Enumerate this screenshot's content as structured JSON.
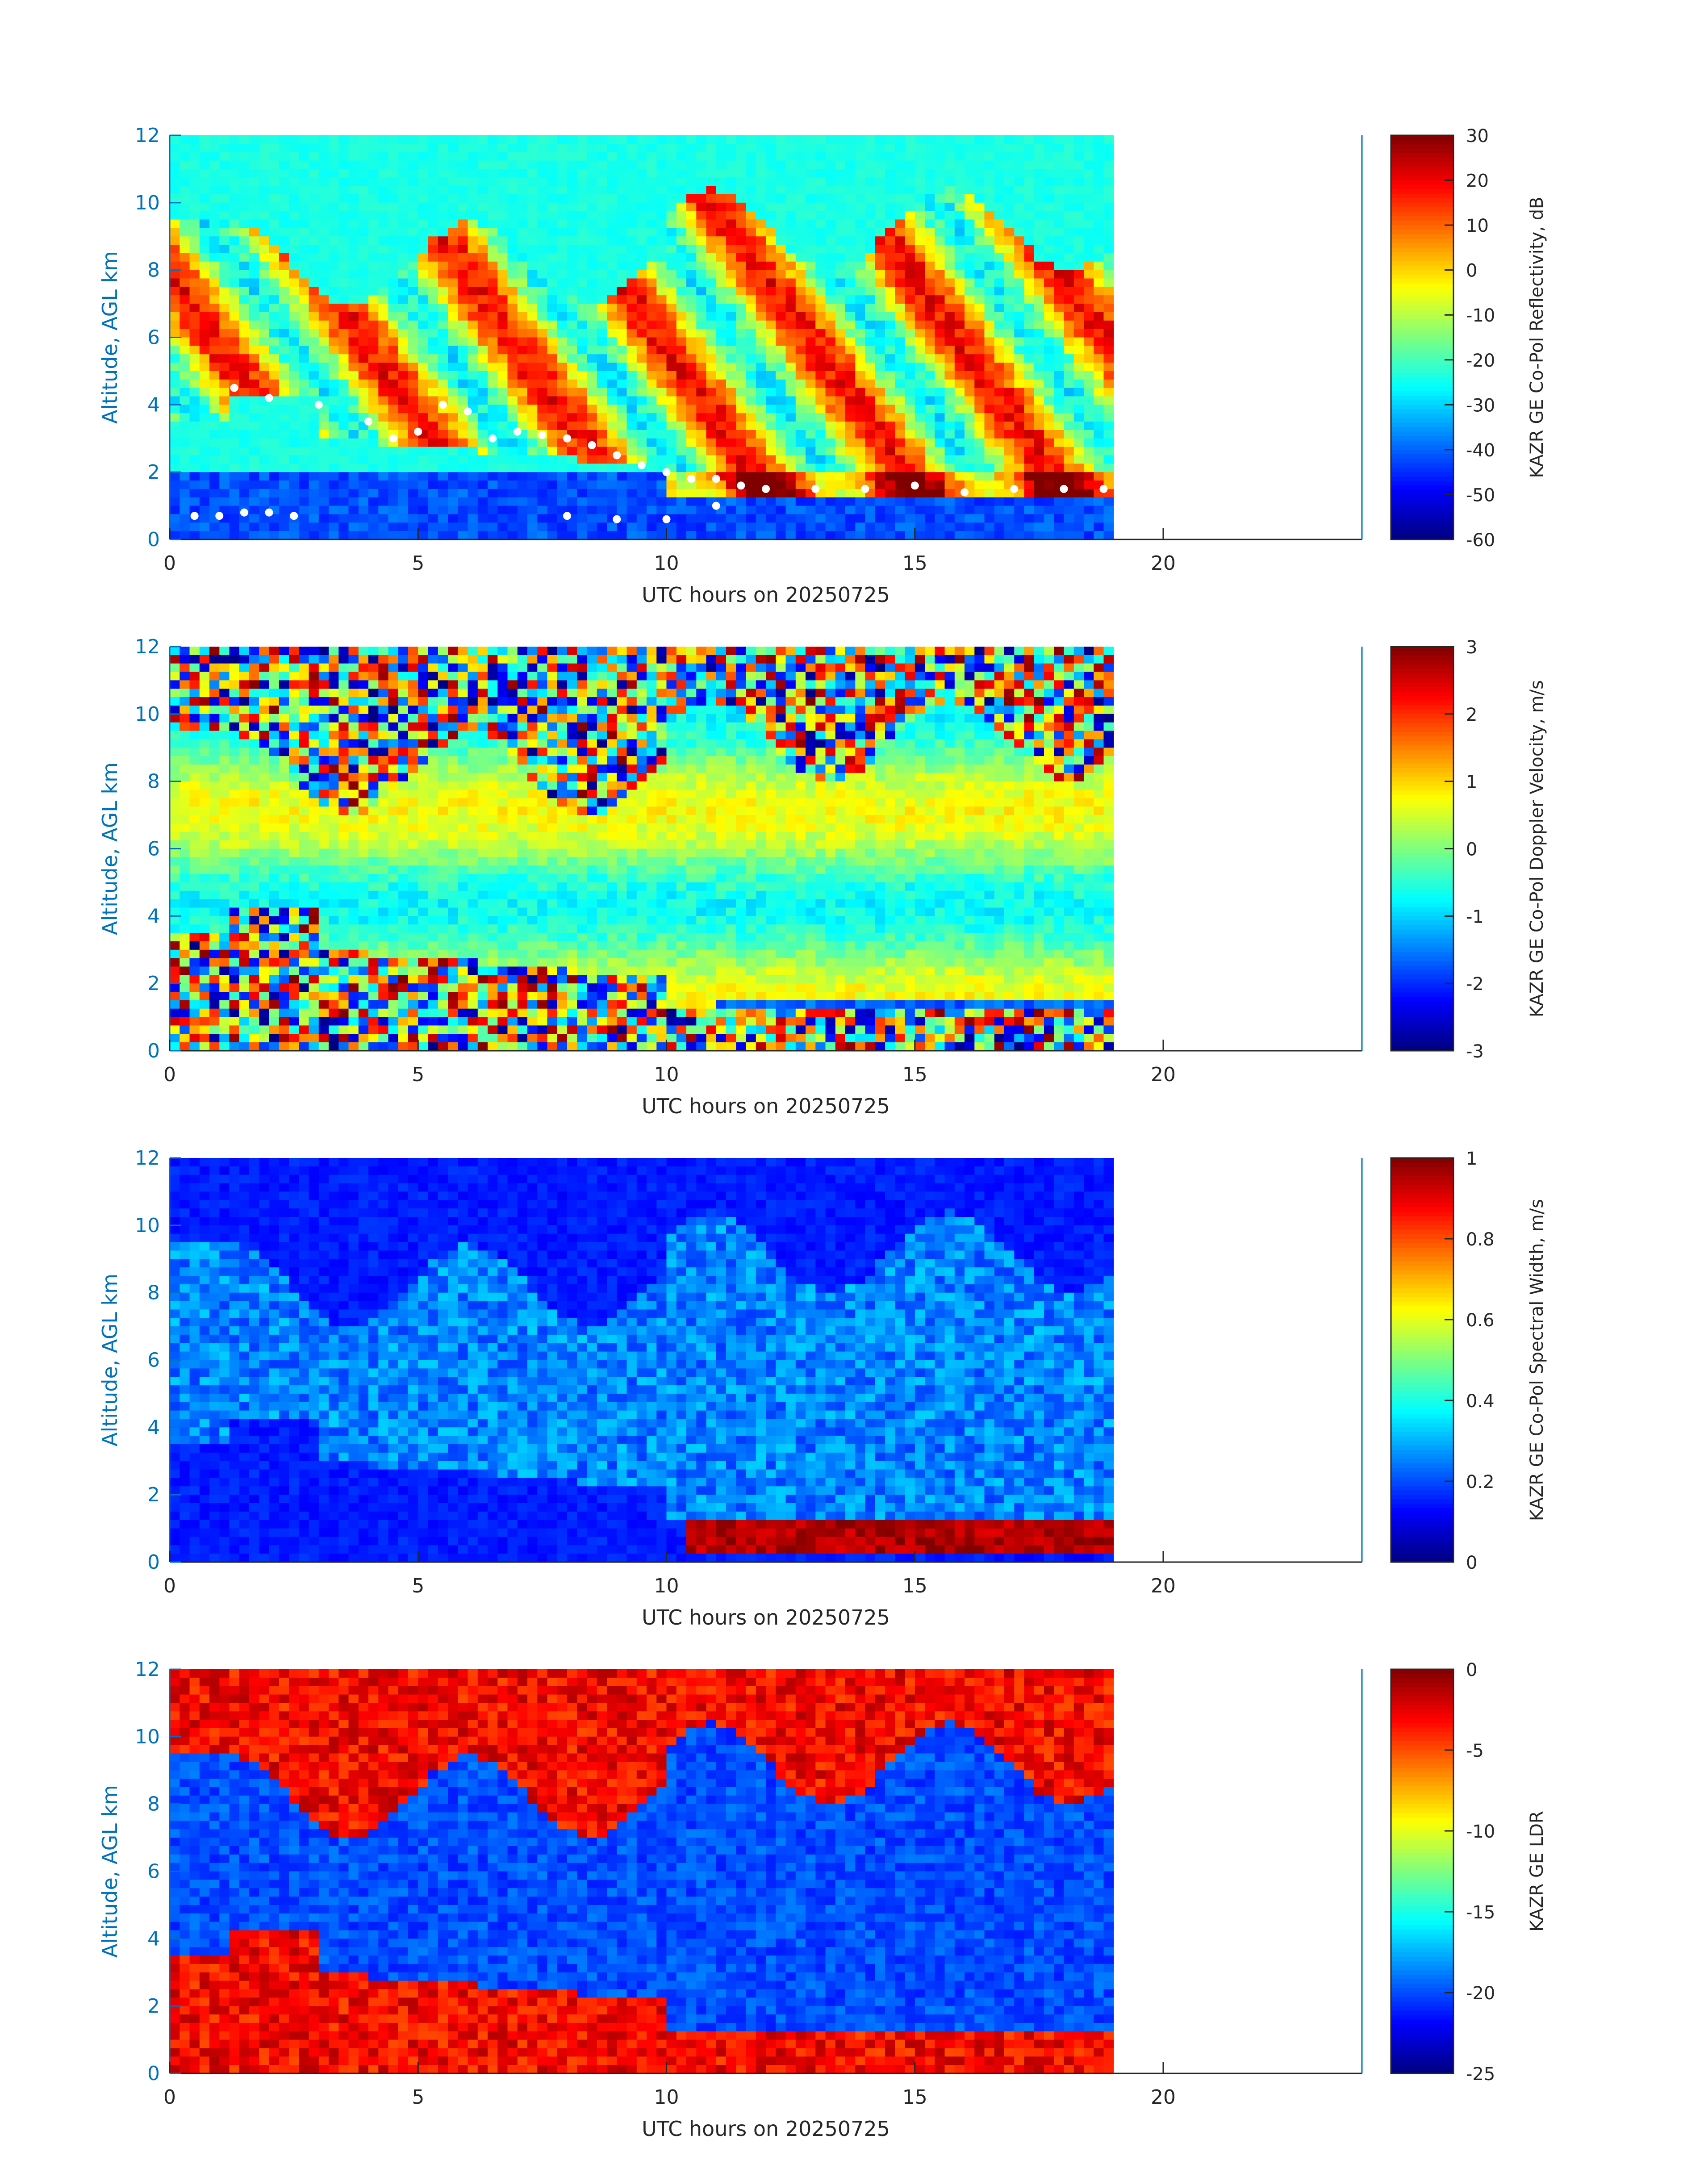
{
  "figure": {
    "colors": {
      "axis": "#0072BD",
      "text": "#262626",
      "tick_label": "#262626",
      "ylabel": "#0072BD",
      "marker": "#ffffff",
      "background": "#ffffff"
    },
    "colormap": "jet"
  },
  "chart_data": [
    {
      "type": "heatmap",
      "title": "",
      "xlabel": "UTC hours on 20250725",
      "ylabel": "Altitude, AGL km",
      "xlim": [
        0,
        24
      ],
      "ylim": [
        0,
        12
      ],
      "x_ticks": [
        0,
        5,
        10,
        15,
        20
      ],
      "y_ticks": [
        0,
        2,
        4,
        6,
        8,
        10,
        12
      ],
      "x_data_extent": [
        0,
        19
      ],
      "colorbar": {
        "label": "KAZR GE Co-Pol Reflectivity, dB",
        "range": [
          -60,
          30
        ],
        "ticks": [
          -60,
          -50,
          -40,
          -30,
          -20,
          -10,
          0,
          10,
          20,
          30
        ]
      },
      "overlay_markers": {
        "description": "white dots (cloud-base / lidar markers)",
        "points": [
          [
            0.5,
            0.7
          ],
          [
            1.0,
            0.7
          ],
          [
            1.5,
            0.8
          ],
          [
            2.0,
            0.8
          ],
          [
            2.5,
            0.7
          ],
          [
            1.3,
            4.5
          ],
          [
            2.0,
            4.2
          ],
          [
            3.0,
            4.0
          ],
          [
            4.0,
            3.5
          ],
          [
            4.5,
            3.0
          ],
          [
            5.0,
            3.2
          ],
          [
            5.5,
            4.0
          ],
          [
            6.0,
            3.8
          ],
          [
            6.5,
            3.0
          ],
          [
            7.0,
            3.2
          ],
          [
            7.5,
            3.1
          ],
          [
            8.0,
            3.0
          ],
          [
            8.5,
            2.8
          ],
          [
            9.0,
            2.5
          ],
          [
            9.5,
            2.2
          ],
          [
            10.0,
            2.0
          ],
          [
            10.5,
            1.8
          ],
          [
            11.0,
            1.8
          ],
          [
            11.5,
            1.6
          ],
          [
            12.0,
            1.5
          ],
          [
            13.0,
            1.5
          ],
          [
            14.0,
            1.5
          ],
          [
            15.0,
            1.6
          ],
          [
            16.0,
            1.4
          ],
          [
            17.0,
            1.5
          ],
          [
            18.0,
            1.5
          ],
          [
            18.8,
            1.5
          ],
          [
            8.0,
            0.7
          ],
          [
            9.0,
            0.6
          ],
          [
            10.0,
            0.6
          ],
          [
            11.0,
            1.0
          ]
        ]
      }
    },
    {
      "type": "heatmap",
      "title": "",
      "xlabel": "UTC hours on 20250725",
      "ylabel": "Altitude, AGL km",
      "xlim": [
        0,
        24
      ],
      "ylim": [
        0,
        12
      ],
      "x_ticks": [
        0,
        5,
        10,
        15,
        20
      ],
      "y_ticks": [
        0,
        2,
        4,
        6,
        8,
        10,
        12
      ],
      "x_data_extent": [
        0,
        19
      ],
      "colorbar": {
        "label": "KAZR GE Co-Pol Doppler Velocity, m/s",
        "range": [
          -3,
          3
        ],
        "ticks": [
          -3,
          -2,
          -1,
          0,
          1,
          2,
          3
        ]
      }
    },
    {
      "type": "heatmap",
      "title": "",
      "xlabel": "UTC hours on 20250725",
      "ylabel": "Altitude, AGL km",
      "xlim": [
        0,
        24
      ],
      "ylim": [
        0,
        12
      ],
      "x_ticks": [
        0,
        5,
        10,
        15,
        20
      ],
      "y_ticks": [
        0,
        2,
        4,
        6,
        8,
        10,
        12
      ],
      "x_data_extent": [
        0,
        19
      ],
      "colorbar": {
        "label": "KAZR GE Co-Pol Spectral Width, m/s",
        "range": [
          0,
          1
        ],
        "ticks": [
          0,
          0.2,
          0.4,
          0.6,
          0.8,
          1
        ]
      }
    },
    {
      "type": "heatmap",
      "title": "",
      "xlabel": "UTC hours on 20250725",
      "ylabel": "Altitude, AGL km",
      "xlim": [
        0,
        24
      ],
      "ylim": [
        0,
        12
      ],
      "x_ticks": [
        0,
        5,
        10,
        15,
        20
      ],
      "y_ticks": [
        0,
        2,
        4,
        6,
        8,
        10,
        12
      ],
      "x_data_extent": [
        0,
        19
      ],
      "colorbar": {
        "label": "KAZR GE LDR",
        "range": [
          -25,
          0
        ],
        "ticks": [
          -25,
          -20,
          -15,
          -10,
          -5,
          0
        ]
      }
    }
  ]
}
